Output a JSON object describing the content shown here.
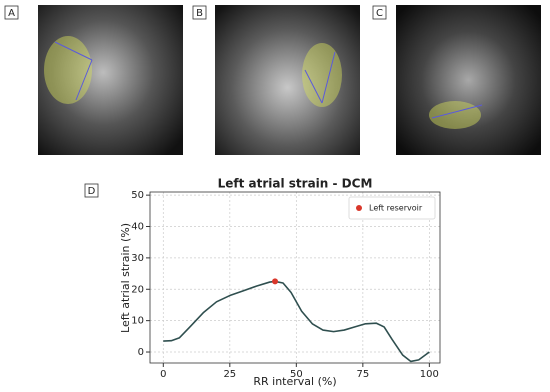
{
  "panel_labels": [
    "A",
    "B",
    "C",
    "D"
  ],
  "chart_data": {
    "type": "line",
    "title": "Left atrial strain - DCM",
    "xlabel": "RR interval (%)",
    "ylabel": "Left atrial strain (%)",
    "x": [
      0,
      3,
      6,
      10,
      15,
      20,
      25,
      30,
      35,
      40,
      42,
      45,
      48,
      52,
      56,
      60,
      64,
      68,
      72,
      76,
      80,
      83,
      86,
      90,
      93,
      96,
      100
    ],
    "series": [
      {
        "color": "#2f4f4f",
        "values": [
          3.5,
          3.6,
          4.5,
          8,
          12.5,
          16,
          18,
          19.5,
          21,
          22.3,
          22.5,
          22,
          19,
          13,
          9,
          7,
          6.5,
          7,
          8,
          9,
          9.2,
          8,
          4,
          -1,
          -3,
          -2.5,
          0
        ]
      },
      {
        "name": "Left reservoir",
        "color": "#d9372b",
        "x": [
          42
        ],
        "values": [
          22.5
        ]
      }
    ],
    "xlim": [
      -5,
      104
    ],
    "ylim": [
      -3.5,
      51
    ],
    "xticks": [
      0,
      25,
      50,
      75,
      100
    ],
    "yticks": [
      0,
      10,
      20,
      30,
      40,
      50
    ],
    "grid": true,
    "legend": "upper right"
  }
}
